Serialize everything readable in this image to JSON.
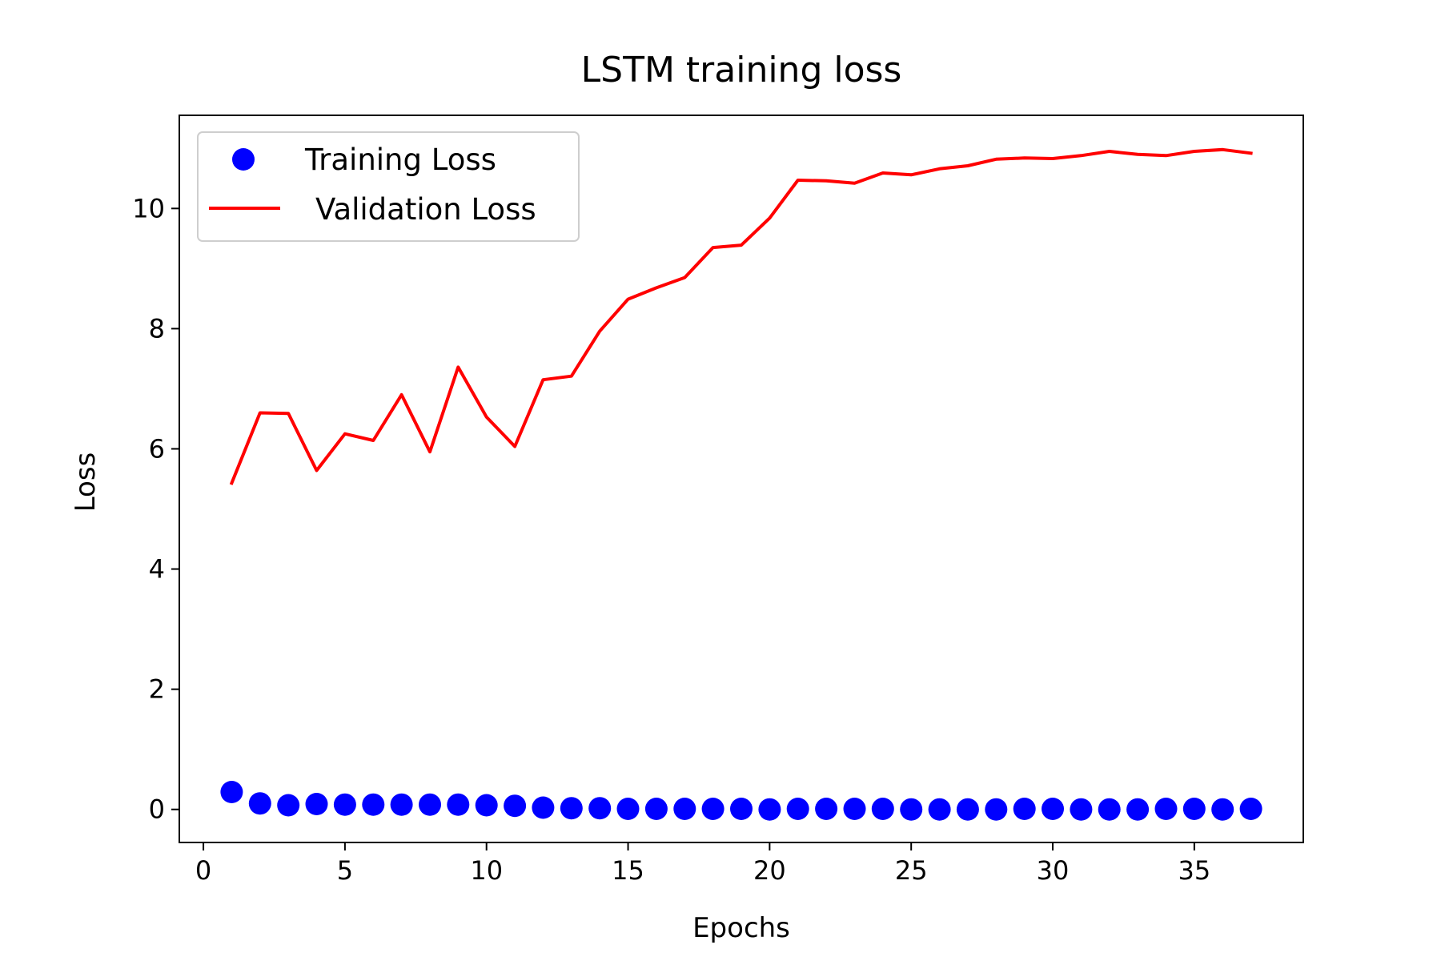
{
  "chart_data": {
    "type": "line",
    "title": "LSTM training loss",
    "xlabel": "Epochs",
    "ylabel": "Loss",
    "xlim": [
      -0.85,
      38.85
    ],
    "ylim": [
      -0.55,
      11.55
    ],
    "xticks": [
      0,
      5,
      10,
      15,
      20,
      25,
      30,
      35
    ],
    "yticks": [
      0,
      2,
      4,
      6,
      8,
      10
    ],
    "grid": false,
    "legend": "top-left",
    "series": [
      {
        "name": "Training Loss",
        "style": "scatter",
        "color": "#0000ff",
        "x": [
          1,
          2,
          3,
          4,
          5,
          6,
          7,
          8,
          9,
          10,
          11,
          12,
          13,
          14,
          15,
          16,
          17,
          18,
          19,
          20,
          21,
          22,
          23,
          24,
          25,
          26,
          27,
          28,
          29,
          30,
          31,
          32,
          33,
          34,
          35,
          36,
          37
        ],
        "y": [
          0.29,
          0.1,
          0.07,
          0.09,
          0.08,
          0.08,
          0.08,
          0.08,
          0.08,
          0.07,
          0.06,
          0.03,
          0.02,
          0.02,
          0.01,
          0.01,
          0.01,
          0.01,
          0.01,
          0.0,
          0.01,
          0.01,
          0.01,
          0.01,
          0.0,
          0.0,
          0.0,
          0.0,
          0.01,
          0.01,
          0.0,
          0.0,
          0.0,
          0.01,
          0.01,
          0.0,
          0.01
        ]
      },
      {
        "name": "Validation Loss",
        "style": "line",
        "color": "#ff0000",
        "x": [
          1,
          2,
          3,
          4,
          5,
          6,
          7,
          8,
          9,
          10,
          11,
          12,
          13,
          14,
          15,
          16,
          17,
          18,
          19,
          20,
          21,
          22,
          23,
          24,
          25,
          26,
          27,
          28,
          29,
          30,
          31,
          32,
          33,
          34,
          35,
          36,
          37
        ],
        "y": [
          5.43,
          6.6,
          6.59,
          5.64,
          6.25,
          6.14,
          6.9,
          5.95,
          7.36,
          6.53,
          6.04,
          7.15,
          7.21,
          7.96,
          8.49,
          8.68,
          8.85,
          9.35,
          9.39,
          9.84,
          10.47,
          10.46,
          10.42,
          10.59,
          10.56,
          10.66,
          10.71,
          10.82,
          10.84,
          10.83,
          10.88,
          10.95,
          10.9,
          10.88,
          10.95,
          10.98,
          10.92
        ]
      }
    ]
  }
}
